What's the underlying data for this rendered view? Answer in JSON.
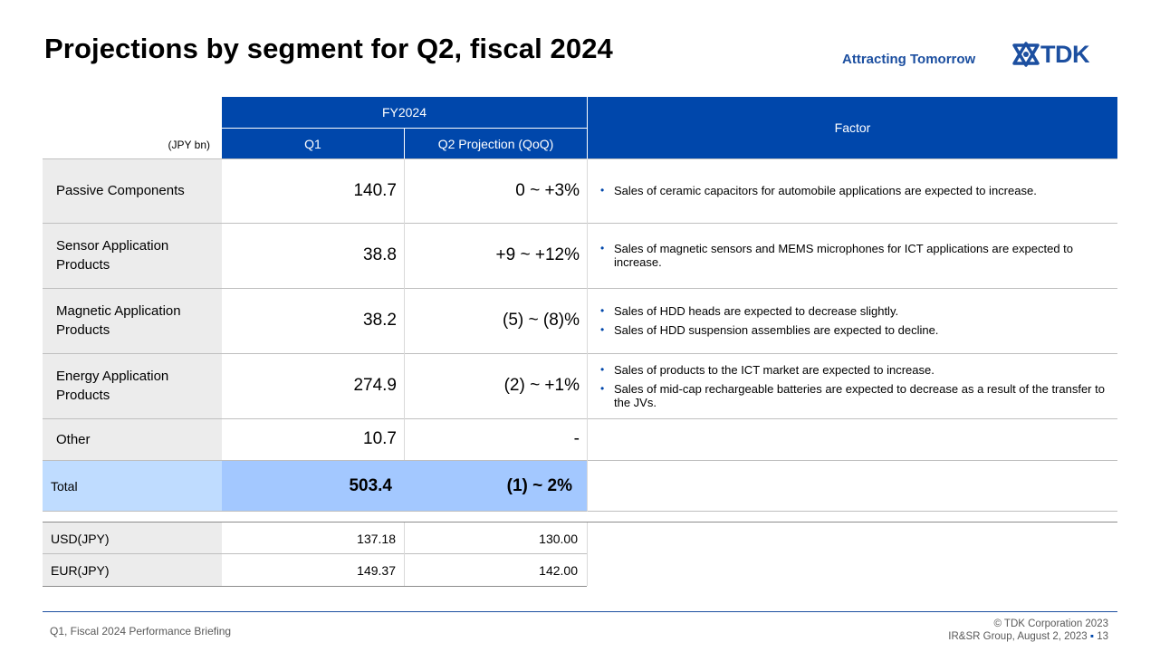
{
  "slide": {
    "title": "Projections by segment for Q2, fiscal 2024",
    "tagline": "Attracting Tomorrow",
    "logo_text": "TDK",
    "logo_icon": "tdk-emblem-icon"
  },
  "table": {
    "unit": "(JPY bn)",
    "group_header": "FY2024",
    "col_q1": "Q1",
    "col_q2": "Q2 Projection (QoQ)",
    "col_factor": "Factor",
    "rows": [
      {
        "segment": "Passive  Components",
        "q1": "140.7",
        "q2": "0 ~ +3%",
        "factors": [
          "Sales of ceramic capacitors for automobile applications are expected to increase."
        ]
      },
      {
        "segment": "Sensor Application Products",
        "q1": "38.8",
        "q2": "+9 ~ +12%",
        "factors": [
          "Sales of magnetic sensors and MEMS  microphones for ICT applications are expected to increase."
        ]
      },
      {
        "segment": "Magnetic  Application Products",
        "q1": "38.2",
        "q2": "(5) ~ (8)%",
        "factors": [
          "Sales of HDD heads are expected to decrease slightly.",
          "Sales of HDD suspension assemblies are expected to decline."
        ]
      },
      {
        "segment": "Energy Application Products",
        "q1": "274.9",
        "q2": "(2) ~ +1%",
        "factors": [
          "Sales of products to the ICT market are expected to increase.",
          "Sales of mid-cap rechargeable batteries are expected to decrease as a result of the transfer to the JVs."
        ]
      },
      {
        "segment": "Other",
        "q1": "10.7",
        "q2": "-",
        "factors": []
      }
    ],
    "total": {
      "label": "Total",
      "q1": "503.4",
      "q2": "(1) ~ 2%"
    },
    "fx": [
      {
        "label": "USD(JPY)",
        "q1": "137.18",
        "q2": "130.00"
      },
      {
        "label": "EUR(JPY)",
        "q1": "149.37",
        "q2": "142.00"
      }
    ]
  },
  "footer": {
    "left": "Q1, Fiscal 2024 Performance  Briefing",
    "copyright": "© TDK Corporation 2023",
    "group": "IR&SR Group, August 2, 2023",
    "page": "13"
  },
  "colors": {
    "header_blue": "#0047ab",
    "brand_blue": "#1c4fa0",
    "total_label_bg": "#bfdcff",
    "total_value_bg": "#a3c8ff",
    "label_gray": "#ececec"
  }
}
